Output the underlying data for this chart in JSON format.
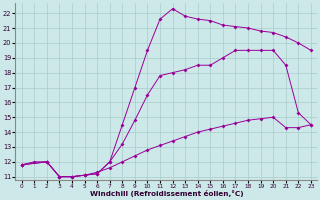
{
  "xlabel": "Windchill (Refroidissement éolien,°C)",
  "bg_color": "#cde8e8",
  "line_color": "#990099",
  "grid_color": "#aacccc",
  "xlim": [
    -0.5,
    23.5
  ],
  "ylim": [
    10.8,
    22.7
  ],
  "xticks": [
    0,
    1,
    2,
    3,
    4,
    5,
    6,
    7,
    8,
    9,
    10,
    11,
    12,
    13,
    14,
    15,
    16,
    17,
    18,
    19,
    20,
    21,
    22,
    23
  ],
  "yticks": [
    11,
    12,
    13,
    14,
    15,
    16,
    17,
    18,
    19,
    20,
    21,
    22
  ],
  "curve_top_x": [
    0,
    2,
    3,
    4,
    5,
    6,
    7,
    8,
    9,
    10,
    11,
    12,
    13,
    14,
    15,
    16,
    17,
    18,
    19,
    20,
    21,
    22,
    23
  ],
  "curve_top_y": [
    11.8,
    12.0,
    11.0,
    11.0,
    11.1,
    11.2,
    12.0,
    14.5,
    17.0,
    19.5,
    21.6,
    22.3,
    21.8,
    21.6,
    21.5,
    21.2,
    21.1,
    21.0,
    20.8,
    20.7,
    20.4,
    20.0,
    19.5
  ],
  "curve_mid_x": [
    0,
    2,
    3,
    4,
    5,
    6,
    7,
    8,
    9,
    10,
    11,
    12,
    13,
    14,
    15,
    16,
    17,
    18,
    19,
    20,
    21,
    22,
    23
  ],
  "curve_mid_y": [
    11.8,
    12.0,
    11.0,
    11.0,
    11.1,
    11.2,
    12.0,
    13.2,
    14.8,
    16.5,
    17.8,
    18.0,
    18.2,
    18.5,
    18.5,
    19.0,
    19.5,
    19.5,
    19.5,
    19.5,
    18.5,
    15.3,
    14.5
  ],
  "curve_bot_x": [
    0,
    1,
    2,
    3,
    4,
    5,
    6,
    7,
    8,
    9,
    10,
    11,
    12,
    13,
    14,
    15,
    16,
    17,
    18,
    19,
    20,
    21,
    22,
    23
  ],
  "curve_bot_y": [
    11.8,
    12.0,
    12.0,
    11.0,
    11.0,
    11.1,
    11.3,
    11.6,
    12.0,
    12.4,
    12.8,
    13.1,
    13.4,
    13.7,
    14.0,
    14.2,
    14.4,
    14.6,
    14.8,
    14.9,
    15.0,
    14.3,
    14.3,
    14.5
  ]
}
